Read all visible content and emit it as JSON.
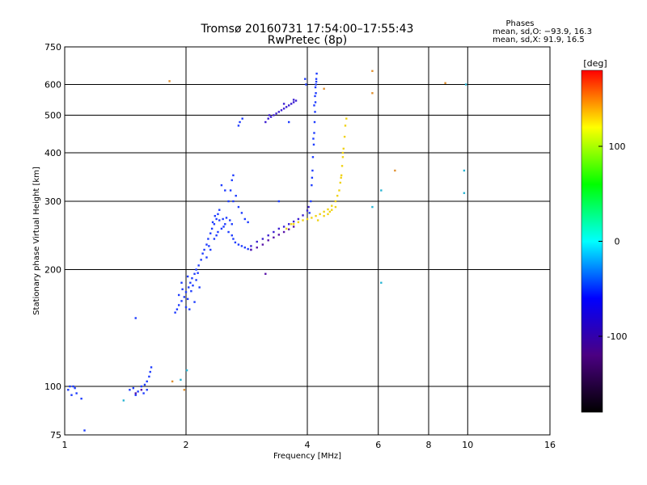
{
  "chart_data": {
    "type": "scatter",
    "title": "Tromsø 20160731 17:54:00–17:55:43",
    "subtitle": "RwPretec (8p)",
    "xlabel": "Frequency [MHz]",
    "ylabel": "Stationary phase Virtual Height [km]",
    "x_scale": "log",
    "y_scale": "log",
    "xlim": [
      1,
      16
    ],
    "ylim": [
      75,
      750
    ],
    "x_ticks": [
      1,
      2,
      4,
      6,
      8,
      10,
      16
    ],
    "y_ticks": [
      75,
      100,
      200,
      300,
      400,
      500,
      600,
      750
    ],
    "grid": true,
    "phase_info": {
      "title": "Phases",
      "line_o": "mean, sd,O: −93.9, 16.3",
      "line_x": "mean, sd,X:  91.9, 16.5"
    },
    "colorbar": {
      "label": "[deg]",
      "range": [
        -180,
        180
      ],
      "ticks": [
        100,
        0,
        -100
      ],
      "colors": [
        "#000000",
        "#4b0082",
        "#0000ff",
        "#00ffff",
        "#00ff00",
        "#ffff00",
        "#ff0000"
      ]
    },
    "series": [
      {
        "points": [
          [
            1.02,
            98
          ],
          [
            1.03,
            100
          ],
          [
            1.05,
            100
          ],
          [
            1.06,
            99
          ],
          [
            1.04,
            95
          ],
          [
            1.07,
            96
          ],
          [
            1.1,
            93
          ],
          [
            1.12,
            77
          ],
          [
            1.45,
            98
          ],
          [
            1.48,
            99
          ],
          [
            1.5,
            95
          ],
          [
            1.52,
            97
          ],
          [
            1.55,
            100
          ],
          [
            1.58,
            101
          ],
          [
            1.6,
            103
          ],
          [
            1.62,
            106
          ],
          [
            1.63,
            109
          ],
          [
            1.64,
            112
          ],
          [
            1.6,
            98
          ],
          [
            1.57,
            96
          ],
          [
            1.5,
            150
          ],
          [
            1.88,
            155
          ],
          [
            1.9,
            158
          ],
          [
            1.92,
            162
          ],
          [
            1.95,
            166
          ],
          [
            1.98,
            170
          ],
          [
            2.0,
            175
          ],
          [
            2.03,
            180
          ],
          [
            2.05,
            185
          ],
          [
            2.07,
            190
          ],
          [
            2.1,
            195
          ],
          [
            2.12,
            200
          ],
          [
            2.15,
            205
          ],
          [
            2.18,
            212
          ],
          [
            2.2,
            220
          ],
          [
            2.22,
            225
          ],
          [
            2.25,
            232
          ],
          [
            2.27,
            240
          ],
          [
            2.3,
            248
          ],
          [
            2.32,
            255
          ],
          [
            2.35,
            262
          ],
          [
            2.38,
            270
          ],
          [
            2.4,
            278
          ],
          [
            2.42,
            285
          ],
          [
            1.92,
            172
          ],
          [
            1.96,
            178
          ],
          [
            2.02,
            168
          ],
          [
            2.06,
            176
          ],
          [
            2.08,
            182
          ],
          [
            2.12,
            188
          ],
          [
            2.0,
            160
          ],
          [
            2.04,
            158
          ],
          [
            2.1,
            165
          ],
          [
            1.95,
            185
          ],
          [
            2.02,
            192
          ],
          [
            2.14,
            196
          ],
          [
            2.16,
            180
          ],
          [
            2.25,
            215
          ],
          [
            2.28,
            230
          ],
          [
            2.3,
            225
          ],
          [
            2.35,
            240
          ],
          [
            2.38,
            245
          ],
          [
            2.4,
            250
          ],
          [
            2.45,
            255
          ],
          [
            2.48,
            258
          ],
          [
            2.5,
            262
          ],
          [
            2.55,
            250
          ],
          [
            2.6,
            245
          ],
          [
            2.62,
            240
          ],
          [
            2.65,
            235
          ],
          [
            2.7,
            232
          ],
          [
            2.75,
            230
          ],
          [
            2.8,
            228
          ],
          [
            2.85,
            226
          ],
          [
            2.9,
            225
          ],
          [
            2.33,
            265
          ],
          [
            2.36,
            275
          ],
          [
            2.42,
            268
          ],
          [
            2.47,
            270
          ],
          [
            2.52,
            272
          ],
          [
            2.57,
            268
          ],
          [
            2.6,
            262
          ],
          [
            2.55,
            300
          ],
          [
            2.58,
            320
          ],
          [
            2.6,
            340
          ],
          [
            2.62,
            350
          ],
          [
            2.66,
            310
          ],
          [
            2.7,
            290
          ],
          [
            2.75,
            280
          ],
          [
            2.8,
            270
          ],
          [
            2.85,
            265
          ],
          [
            2.5,
            320
          ],
          [
            2.45,
            330
          ],
          [
            2.62,
            300
          ],
          [
            2.72,
            480
          ],
          [
            2.76,
            490
          ],
          [
            2.7,
            470
          ],
          [
            4.05,
            280
          ],
          [
            4.08,
            300
          ],
          [
            4.1,
            330
          ],
          [
            4.12,
            360
          ],
          [
            4.13,
            390
          ],
          [
            4.15,
            420
          ],
          [
            4.16,
            450
          ],
          [
            4.17,
            480
          ],
          [
            4.18,
            510
          ],
          [
            4.19,
            540
          ],
          [
            4.2,
            570
          ],
          [
            4.2,
            600
          ],
          [
            4.21,
            620
          ],
          [
            4.22,
            640
          ],
          [
            4.18,
            560
          ],
          [
            4.16,
            530
          ],
          [
            4.19,
            590
          ],
          [
            4.21,
            610
          ],
          [
            4.14,
            435
          ],
          [
            4.11,
            345
          ],
          [
            3.95,
            620
          ],
          [
            3.97,
            600
          ],
          [
            3.6,
            480
          ],
          [
            3.4,
            300
          ]
        ],
        "color": "#1e3cff"
      },
      {
        "points": [
          [
            2.9,
            230
          ],
          [
            3.0,
            236
          ],
          [
            3.1,
            240
          ],
          [
            3.2,
            245
          ],
          [
            3.3,
            250
          ],
          [
            3.4,
            255
          ],
          [
            3.5,
            258
          ],
          [
            3.6,
            262
          ],
          [
            3.7,
            266
          ],
          [
            3.8,
            270
          ],
          [
            3.9,
            276
          ],
          [
            4.0,
            284
          ],
          [
            4.03,
            290
          ],
          [
            3.15,
            480
          ],
          [
            3.2,
            490
          ],
          [
            3.25,
            495
          ],
          [
            3.3,
            500
          ],
          [
            3.35,
            505
          ],
          [
            3.4,
            510
          ],
          [
            3.45,
            515
          ],
          [
            3.5,
            520
          ],
          [
            3.55,
            525
          ],
          [
            3.6,
            530
          ],
          [
            3.65,
            535
          ],
          [
            3.7,
            540
          ],
          [
            3.75,
            545
          ],
          [
            3.22,
            500
          ],
          [
            3.5,
            535
          ],
          [
            3.7,
            548
          ]
        ],
        "color": "#3c1ed2"
      },
      {
        "points": [
          [
            2.9,
            225
          ],
          [
            3.0,
            228
          ],
          [
            3.1,
            232
          ],
          [
            3.2,
            238
          ],
          [
            3.3,
            242
          ],
          [
            3.4,
            246
          ],
          [
            3.5,
            250
          ],
          [
            3.6,
            254
          ],
          [
            3.7,
            258
          ],
          [
            3.15,
            195
          ],
          [
            1.5,
            96
          ],
          [
            1.55,
            98
          ]
        ],
        "color": "#5a14aa"
      },
      {
        "points": [
          [
            3.7,
            262
          ],
          [
            3.8,
            265
          ],
          [
            3.9,
            268
          ],
          [
            4.0,
            270
          ],
          [
            4.1,
            272
          ],
          [
            4.2,
            275
          ],
          [
            4.3,
            278
          ],
          [
            4.4,
            282
          ],
          [
            4.5,
            286
          ],
          [
            4.6,
            292
          ],
          [
            4.7,
            300
          ],
          [
            4.75,
            310
          ],
          [
            4.8,
            320
          ],
          [
            4.83,
            335
          ],
          [
            4.86,
            350
          ],
          [
            4.88,
            370
          ],
          [
            4.9,
            390
          ],
          [
            4.92,
            410
          ],
          [
            4.95,
            440
          ],
          [
            4.97,
            470
          ],
          [
            5.0,
            490
          ],
          [
            4.4,
            275
          ],
          [
            4.5,
            278
          ],
          [
            4.6,
            285
          ],
          [
            4.7,
            290
          ],
          [
            3.55,
            255
          ],
          [
            3.65,
            262
          ],
          [
            4.25,
            268
          ],
          [
            4.55,
            282
          ],
          [
            4.85,
            345
          ],
          [
            4.9,
            400
          ]
        ],
        "color": "#f0d214"
      },
      {
        "points": [
          [
            5.8,
            650
          ],
          [
            4.4,
            585
          ],
          [
            5.8,
            570
          ],
          [
            6.6,
            360
          ],
          [
            8.8,
            605
          ],
          [
            1.82,
            612
          ],
          [
            1.98,
            98
          ],
          [
            1.85,
            103
          ]
        ],
        "color": "#e09030"
      },
      {
        "points": [
          [
            6.1,
            320
          ],
          [
            5.8,
            290
          ],
          [
            6.1,
            185
          ],
          [
            9.8,
            360
          ],
          [
            9.8,
            315
          ],
          [
            9.9,
            600
          ],
          [
            1.4,
            92
          ],
          [
            1.94,
            104
          ],
          [
            2.01,
            110
          ]
        ],
        "color": "#28b4d2"
      }
    ]
  }
}
